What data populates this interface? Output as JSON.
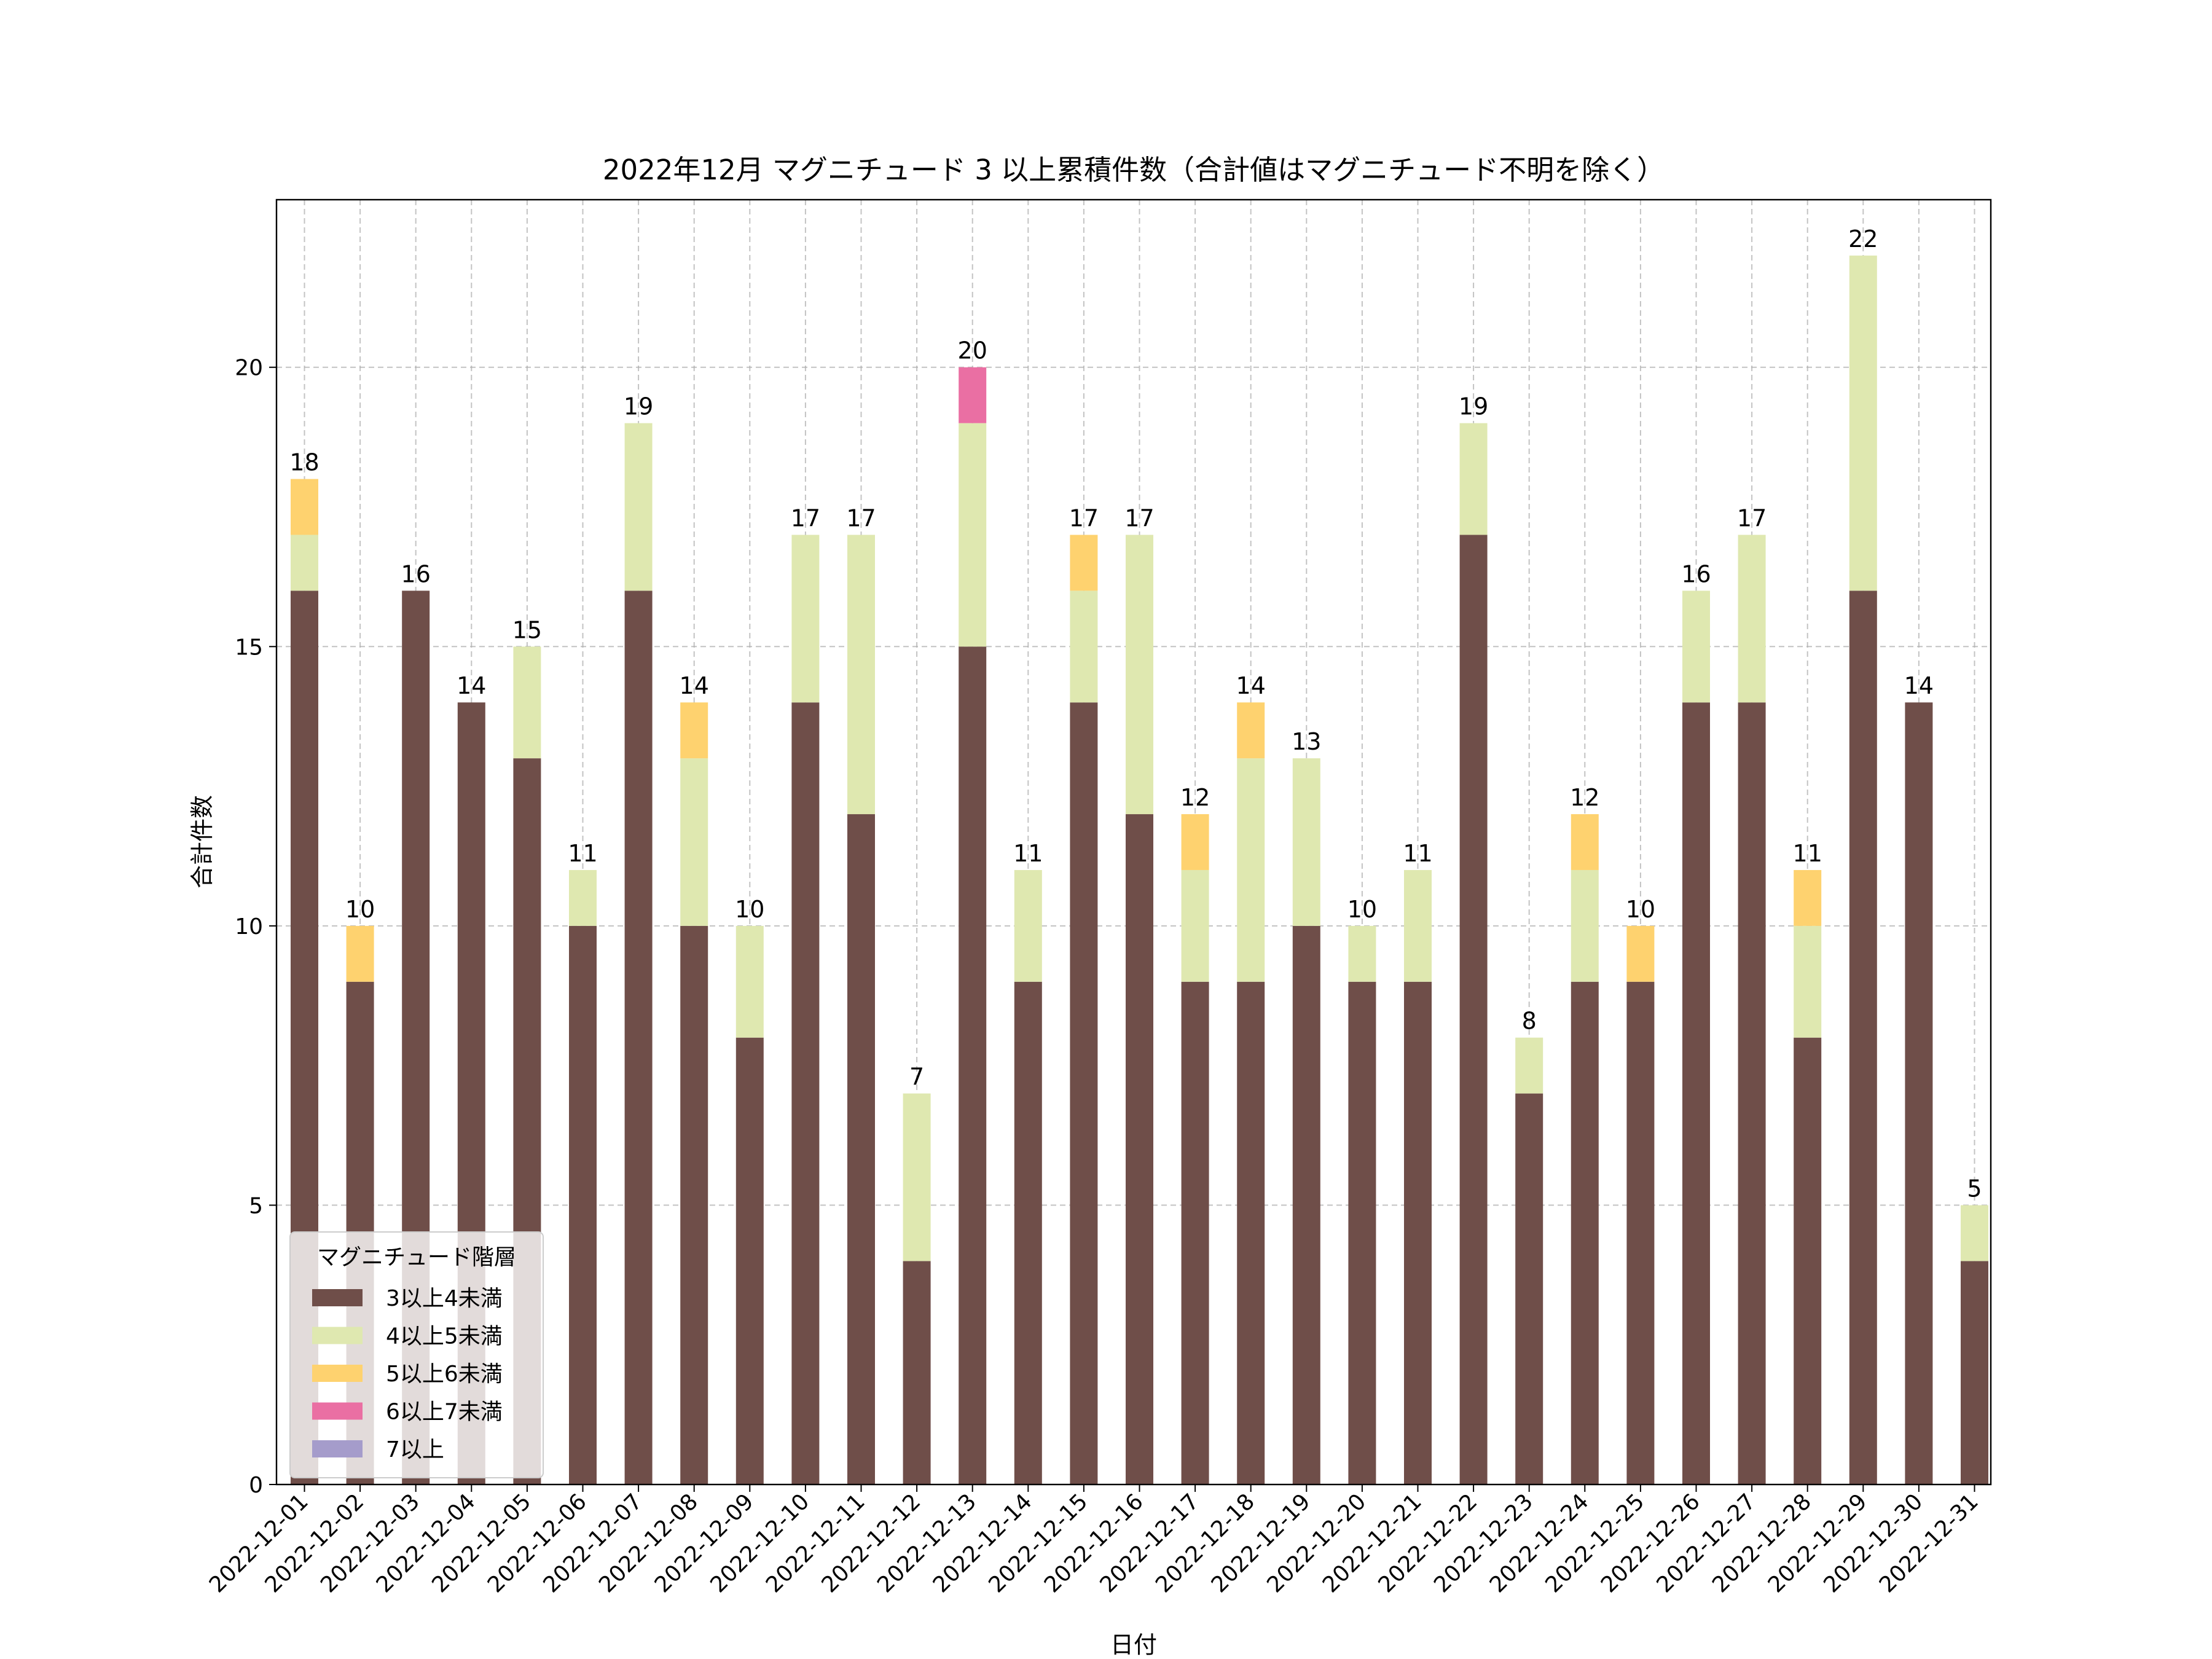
{
  "chart_data": {
    "type": "bar",
    "stacked": true,
    "title": "2022年12月 マグニチュード 3 以上累積件数（合計値はマグニチュード不明を除く）",
    "xlabel": "日付",
    "ylabel": "合計件数",
    "ylim": [
      0,
      23
    ],
    "yticks": [
      "0",
      "5",
      "10",
      "15",
      "20"
    ],
    "grid": true,
    "legend_title": "マグニチュード階層",
    "legend_position": "lower-left",
    "categories": [
      "2022-12-01",
      "2022-12-02",
      "2022-12-03",
      "2022-12-04",
      "2022-12-05",
      "2022-12-06",
      "2022-12-07",
      "2022-12-08",
      "2022-12-09",
      "2022-12-10",
      "2022-12-11",
      "2022-12-12",
      "2022-12-13",
      "2022-12-14",
      "2022-12-15",
      "2022-12-16",
      "2022-12-17",
      "2022-12-18",
      "2022-12-19",
      "2022-12-20",
      "2022-12-21",
      "2022-12-22",
      "2022-12-23",
      "2022-12-24",
      "2022-12-25",
      "2022-12-26",
      "2022-12-27",
      "2022-12-28",
      "2022-12-29",
      "2022-12-30",
      "2022-12-31"
    ],
    "series": [
      {
        "name": "3以上4未満",
        "color": "#6f4e49",
        "values": [
          16,
          9,
          16,
          14,
          13,
          10,
          16,
          10,
          8,
          14,
          12,
          4,
          15,
          9,
          14,
          12,
          9,
          9,
          10,
          9,
          9,
          17,
          7,
          9,
          9,
          14,
          14,
          8,
          16,
          14,
          4
        ]
      },
      {
        "name": "4以上5未満",
        "color": "#dfe8b0",
        "values": [
          1,
          0,
          0,
          0,
          2,
          1,
          3,
          3,
          2,
          3,
          5,
          3,
          4,
          2,
          2,
          5,
          2,
          4,
          3,
          1,
          2,
          2,
          1,
          2,
          0,
          2,
          3,
          2,
          6,
          0,
          1
        ]
      },
      {
        "name": "5以上6未満",
        "color": "#fed26f",
        "values": [
          1,
          1,
          0,
          0,
          0,
          0,
          0,
          1,
          0,
          0,
          0,
          0,
          0,
          0,
          1,
          0,
          1,
          1,
          0,
          0,
          0,
          0,
          0,
          1,
          1,
          0,
          0,
          1,
          0,
          0,
          0
        ]
      },
      {
        "name": "6以上7未満",
        "color": "#ea6fa3",
        "values": [
          0,
          0,
          0,
          0,
          0,
          0,
          0,
          0,
          0,
          0,
          0,
          0,
          1,
          0,
          0,
          0,
          0,
          0,
          0,
          0,
          0,
          0,
          0,
          0,
          0,
          0,
          0,
          0,
          0,
          0,
          0
        ]
      },
      {
        "name": "7以上",
        "color": "#a59ccb",
        "values": [
          0,
          0,
          0,
          0,
          0,
          0,
          0,
          0,
          0,
          0,
          0,
          0,
          0,
          0,
          0,
          0,
          0,
          0,
          0,
          0,
          0,
          0,
          0,
          0,
          0,
          0,
          0,
          0,
          0,
          0,
          0
        ]
      }
    ],
    "totals": [
      "18",
      "10",
      "16",
      "14",
      "15",
      "11",
      "19",
      "14",
      "10",
      "17",
      "17",
      "7",
      "20",
      "11",
      "17",
      "17",
      "12",
      "14",
      "13",
      "10",
      "11",
      "19",
      "8",
      "12",
      "10",
      "16",
      "17",
      "11",
      "22",
      "14",
      "5"
    ]
  }
}
